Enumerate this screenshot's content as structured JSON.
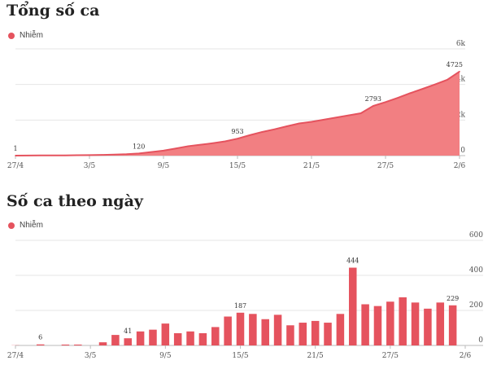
{
  "colors": {
    "series": "#E5535E",
    "area_fill": "#F27F82",
    "grid": "#e6e6e6",
    "axis": "#bbbbbb",
    "text": "#555555"
  },
  "chart_data": [
    {
      "type": "area",
      "title": "Tổng số ca",
      "legend": {
        "position": "top-left",
        "entries": [
          "Nhiễm"
        ]
      },
      "grid": true,
      "xlim": [
        "27/4",
        "2/6"
      ],
      "ylim": [
        0,
        6000
      ],
      "y_ticks": [
        {
          "value": 0,
          "label": "0"
        },
        {
          "value": 2000,
          "label": "2k"
        },
        {
          "value": 4000,
          "label": "4k"
        },
        {
          "value": 6000,
          "label": "6k"
        }
      ],
      "x_tick_labels": [
        "27/4",
        "3/5",
        "9/5",
        "15/5",
        "21/5",
        "27/5",
        "2/6"
      ],
      "x": [
        "27/4",
        "28/4",
        "29/4",
        "30/4",
        "1/5",
        "2/5",
        "3/5",
        "4/5",
        "5/5",
        "6/5",
        "7/5",
        "8/5",
        "9/5",
        "10/5",
        "11/5",
        "12/5",
        "13/5",
        "14/5",
        "15/5",
        "16/5",
        "17/5",
        "18/5",
        "19/5",
        "20/5",
        "21/5",
        "22/5",
        "23/5",
        "24/5",
        "25/5",
        "26/5",
        "27/5",
        "28/5",
        "29/5",
        "30/5",
        "31/5",
        "1/6",
        "2/6"
      ],
      "series": [
        {
          "name": "Nhiễm",
          "values": [
            1,
            8,
            10,
            12,
            14,
            20,
            28,
            40,
            55,
            79,
            120,
            200,
            280,
            400,
            530,
            610,
            700,
            800,
            953,
            1150,
            1330,
            1480,
            1650,
            1810,
            1900,
            2020,
            2140,
            2260,
            2380,
            2793,
            3010,
            3250,
            3510,
            3750,
            4000,
            4260,
            4725
          ]
        }
      ],
      "annotations": [
        {
          "x": "27/4",
          "value": 1,
          "label": "1"
        },
        {
          "x": "7/5",
          "value": 120,
          "label": "120"
        },
        {
          "x": "15/5",
          "value": 953,
          "label": "953"
        },
        {
          "x": "26/5",
          "value": 2793,
          "label": "2793"
        },
        {
          "x": "2/6",
          "value": 4725,
          "label": "4725"
        }
      ]
    },
    {
      "type": "bar",
      "title": "Số ca theo ngày",
      "legend": {
        "position": "top-left",
        "entries": [
          "Nhiễm"
        ]
      },
      "grid": true,
      "xlim": [
        "27/4",
        "2/6"
      ],
      "ylim": [
        0,
        600
      ],
      "y_ticks": [
        {
          "value": 0,
          "label": "0"
        },
        {
          "value": 200,
          "label": "200"
        },
        {
          "value": 400,
          "label": "400"
        },
        {
          "value": 600,
          "label": "600"
        }
      ],
      "x_tick_labels": [
        "27/4",
        "3/5",
        "9/5",
        "15/5",
        "21/5",
        "27/5",
        "2/6"
      ],
      "categories": [
        "27/4",
        "28/4",
        "29/4",
        "30/4",
        "1/5",
        "2/5",
        "3/5",
        "4/5",
        "5/5",
        "6/5",
        "7/5",
        "8/5",
        "9/5",
        "10/5",
        "11/5",
        "12/5",
        "13/5",
        "14/5",
        "15/5",
        "16/5",
        "17/5",
        "18/5",
        "19/5",
        "20/5",
        "21/5",
        "22/5",
        "23/5",
        "24/5",
        "25/5",
        "26/5",
        "27/5",
        "28/5",
        "29/5",
        "30/5",
        "31/5",
        "1/6",
        "2/6"
      ],
      "series": [
        {
          "name": "Nhiễm",
          "values": [
            1,
            0,
            6,
            0,
            5,
            5,
            0,
            18,
            60,
            41,
            80,
            90,
            125,
            70,
            80,
            70,
            105,
            165,
            187,
            180,
            150,
            175,
            115,
            130,
            140,
            130,
            180,
            444,
            235,
            225,
            250,
            275,
            245,
            210,
            245,
            229,
            0
          ]
        }
      ],
      "annotations": [
        {
          "x": "29/4",
          "value": 6,
          "label": "6"
        },
        {
          "x": "6/5",
          "value": 41,
          "label": "41"
        },
        {
          "x": "15/5",
          "value": 187,
          "label": "187"
        },
        {
          "x": "24/5",
          "value": 444,
          "label": "444"
        },
        {
          "x": "1/6",
          "value": 229,
          "label": "229"
        }
      ]
    }
  ]
}
